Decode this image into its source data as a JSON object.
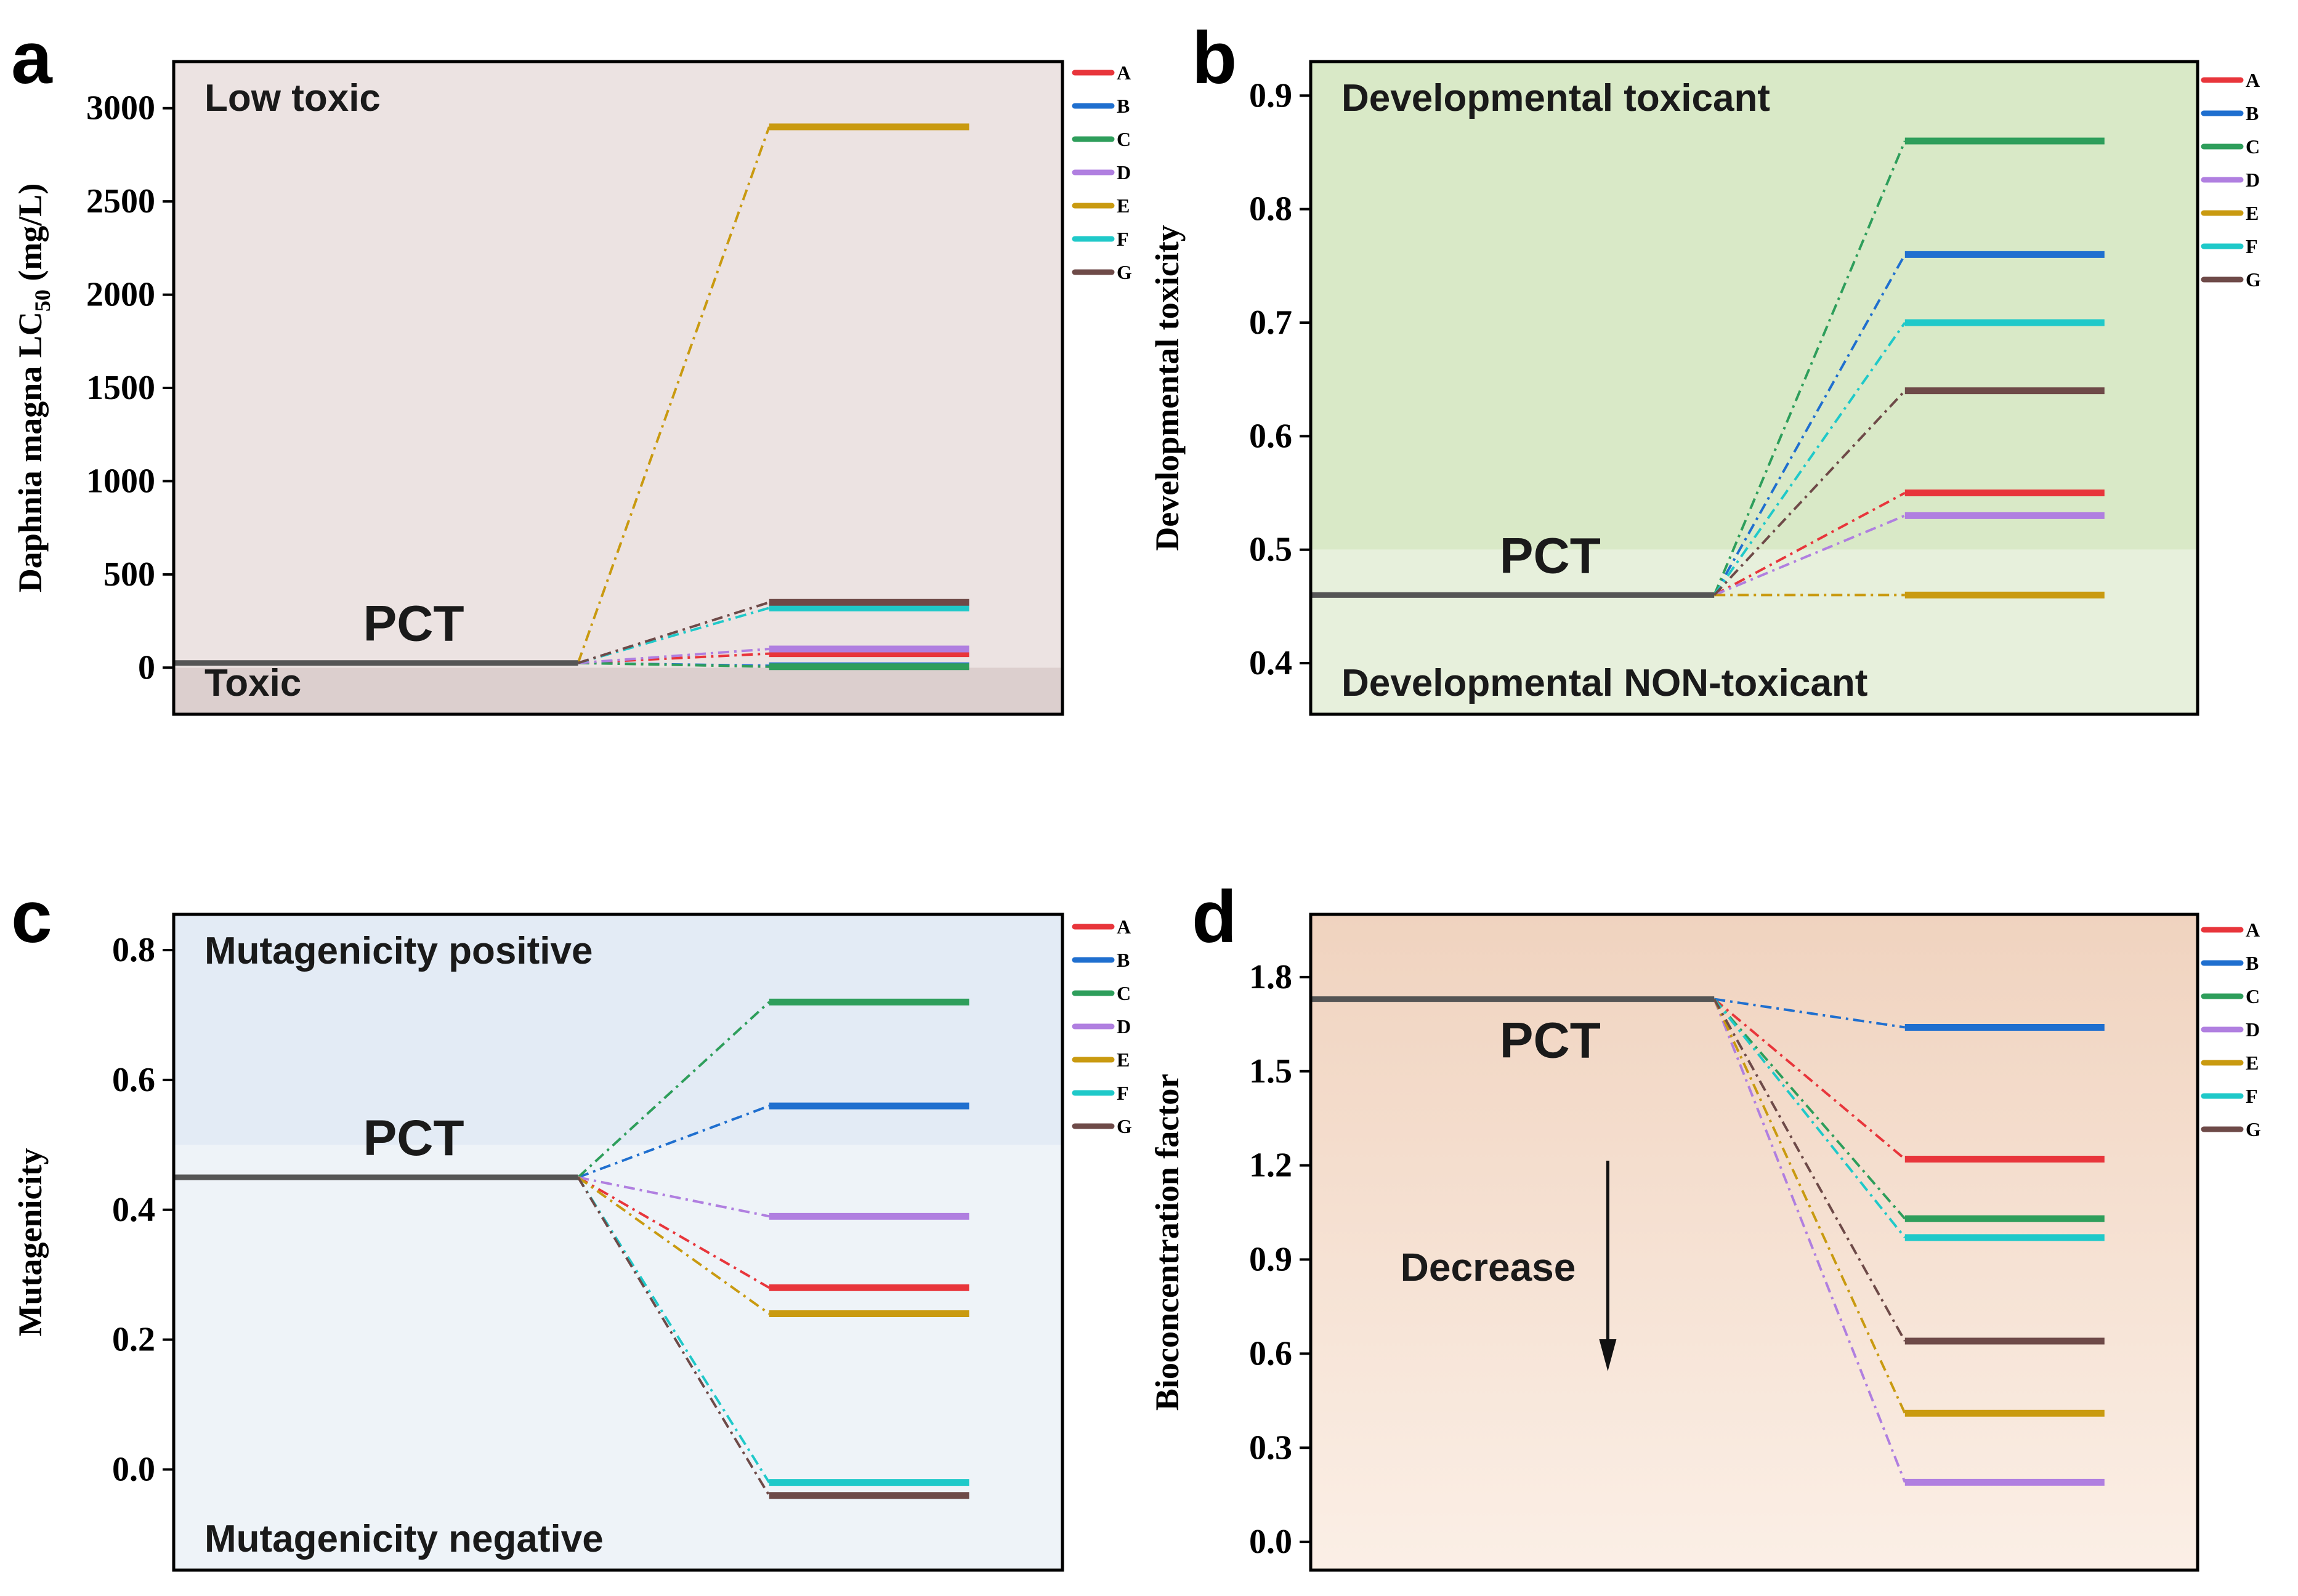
{
  "figure": {
    "colors": {
      "A": "#e8353b",
      "B": "#1f6fcf",
      "C": "#2e9e5b",
      "D": "#b07fe0",
      "E": "#c99a10",
      "F": "#1fc9c9",
      "G": "#6e4a48",
      "PCT": "#555555"
    }
  },
  "chart_data": [
    {
      "type": "line",
      "panel": "a",
      "ylabel": "Daphnia magna LC",
      "ylabel_sub": "50",
      "ylabel_tail": " (mg/L)",
      "ylim": [
        -250,
        3250
      ],
      "yticks": [
        "0",
        "500",
        "1000",
        "1500",
        "2000",
        "2500",
        "3000"
      ],
      "ytick_values": [
        0,
        500,
        1000,
        1500,
        2000,
        2500,
        3000
      ],
      "threshold": 0,
      "upper_region": {
        "label": "Low toxic",
        "color": "#ece3e2"
      },
      "lower_region": {
        "label": "Toxic",
        "color": "#dccfce"
      },
      "baseline": {
        "name": "PCT",
        "value": 25
      },
      "series": [
        {
          "name": "A",
          "value": 75
        },
        {
          "name": "B",
          "value": 10
        },
        {
          "name": "C",
          "value": 5
        },
        {
          "name": "D",
          "value": 100
        },
        {
          "name": "E",
          "value": 2900
        },
        {
          "name": "F",
          "value": 320
        },
        {
          "name": "G",
          "value": 350
        }
      ]
    },
    {
      "type": "line",
      "panel": "b",
      "ylabel": "Developmental toxicity",
      "ylim": [
        0.355,
        0.93
      ],
      "yticks": [
        "0.4",
        "0.5",
        "0.6",
        "0.7",
        "0.8",
        "0.9"
      ],
      "ytick_values": [
        0.4,
        0.5,
        0.6,
        0.7,
        0.8,
        0.9
      ],
      "threshold": 0.5,
      "upper_region": {
        "label": "Developmental toxicant",
        "color": "#d9e9c7"
      },
      "lower_region": {
        "label": "Developmental NON-toxicant",
        "color": "#e7f0dc"
      },
      "baseline": {
        "name": "PCT",
        "value": 0.46
      },
      "series": [
        {
          "name": "A",
          "value": 0.55
        },
        {
          "name": "B",
          "value": 0.76
        },
        {
          "name": "C",
          "value": 0.86
        },
        {
          "name": "D",
          "value": 0.53
        },
        {
          "name": "E",
          "value": 0.46
        },
        {
          "name": "F",
          "value": 0.7
        },
        {
          "name": "G",
          "value": 0.64
        }
      ]
    },
    {
      "type": "line",
      "panel": "c",
      "ylabel": "Mutagenicity",
      "ylim": [
        -0.155,
        0.855
      ],
      "yticks": [
        "0.0",
        "0.2",
        "0.4",
        "0.6",
        "0.8"
      ],
      "ytick_values": [
        0.0,
        0.2,
        0.4,
        0.6,
        0.8
      ],
      "threshold": 0.5,
      "upper_region": {
        "label": "Mutagenicity positive",
        "color": "#e3ebf5"
      },
      "lower_region": {
        "label": "Mutagenicity negative",
        "color": "#eef3f8"
      },
      "baseline": {
        "name": "PCT",
        "value": 0.45
      },
      "series": [
        {
          "name": "A",
          "value": 0.28
        },
        {
          "name": "B",
          "value": 0.56
        },
        {
          "name": "C",
          "value": 0.72
        },
        {
          "name": "D",
          "value": 0.39
        },
        {
          "name": "E",
          "value": 0.24
        },
        {
          "name": "F",
          "value": -0.02
        },
        {
          "name": "G",
          "value": -0.04
        }
      ]
    },
    {
      "type": "line",
      "panel": "d",
      "ylabel": "Bioconcentration factor",
      "ylim": [
        -0.09,
        2.0
      ],
      "yticks": [
        "0.0",
        "0.3",
        "0.6",
        "0.9",
        "1.2",
        "1.5",
        "1.8"
      ],
      "ytick_values": [
        0.0,
        0.3,
        0.6,
        0.9,
        1.2,
        1.5,
        1.8
      ],
      "threshold": null,
      "gradient": {
        "top": "#f0d3bf",
        "bottom": "#fbefe6"
      },
      "annotation": "Decrease",
      "baseline": {
        "name": "PCT",
        "value": 1.73
      },
      "series": [
        {
          "name": "A",
          "value": 1.22
        },
        {
          "name": "B",
          "value": 1.64
        },
        {
          "name": "C",
          "value": 1.03
        },
        {
          "name": "D",
          "value": 0.19
        },
        {
          "name": "E",
          "value": 0.41
        },
        {
          "name": "F",
          "value": 0.97
        },
        {
          "name": "G",
          "value": 0.64
        }
      ]
    }
  ]
}
